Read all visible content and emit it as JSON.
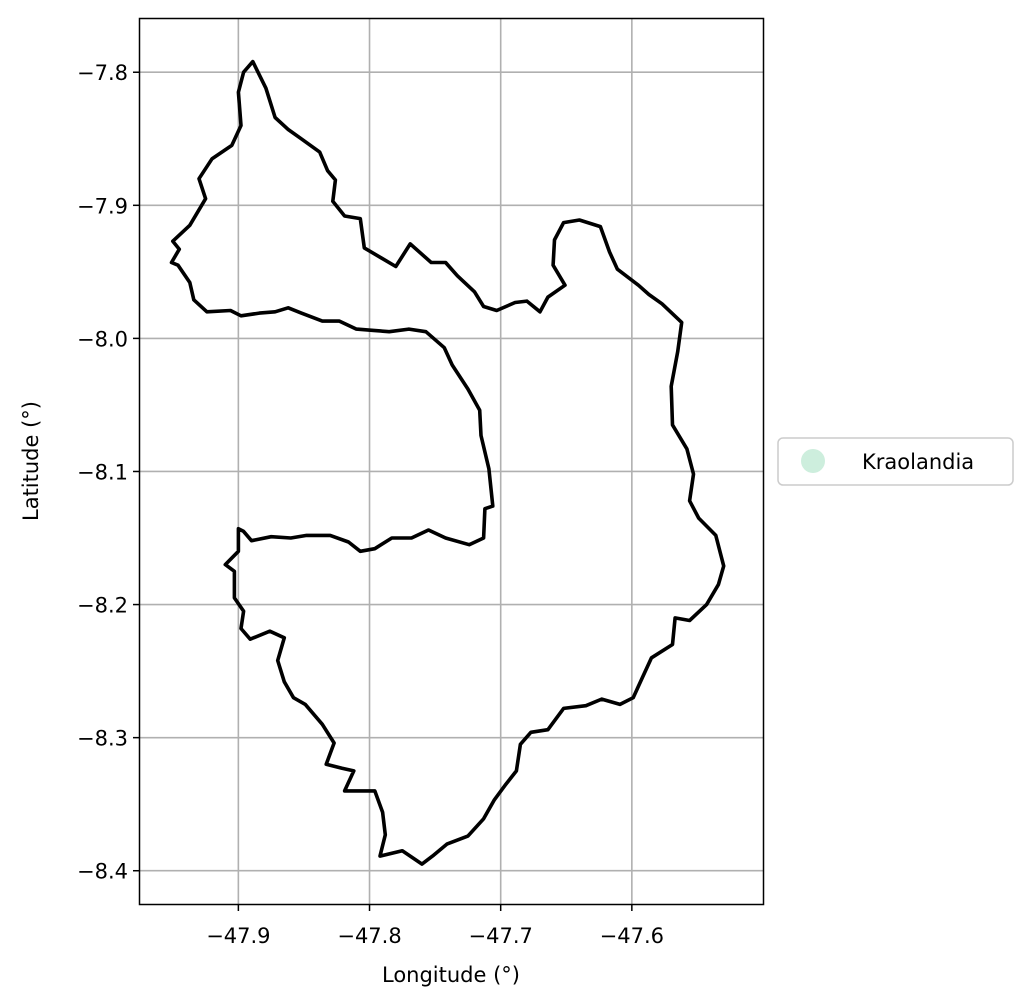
{
  "chart_data": {
    "type": "map",
    "xlabel": "Longitude (°)",
    "ylabel": "Latitude (°)",
    "xlim": [
      -47.975,
      -47.5
    ],
    "ylim": [
      -8.425,
      -7.76
    ],
    "x_ticks": [
      -47.9,
      -47.8,
      -47.7,
      -47.6
    ],
    "x_tick_labels": [
      "−47.9",
      "−47.8",
      "−47.7",
      "−47.6"
    ],
    "y_ticks": [
      -7.8,
      -7.9,
      -8.0,
      -8.1,
      -8.2,
      -8.3,
      -8.4
    ],
    "y_tick_labels": [
      "−7.8",
      "−7.9",
      "−8.0",
      "−8.1",
      "−8.2",
      "−8.3",
      "−8.4"
    ],
    "grid": true,
    "legend": {
      "placement": "right-outside",
      "entries": [
        {
          "label": "Kraolandia",
          "color": "#cdeedd",
          "marker": "circle"
        }
      ]
    },
    "boundary_color": "#000000",
    "boundary": [
      [
        -47.889,
        -7.792
      ],
      [
        -47.885,
        -7.8
      ],
      [
        -47.879,
        -7.812
      ],
      [
        -47.872,
        -7.834
      ],
      [
        -47.862,
        -7.843
      ],
      [
        -47.852,
        -7.85
      ],
      [
        -47.838,
        -7.86
      ],
      [
        -47.832,
        -7.874
      ],
      [
        -47.826,
        -7.881
      ],
      [
        -47.828,
        -7.897
      ],
      [
        -47.819,
        -7.908
      ],
      [
        -47.807,
        -7.91
      ],
      [
        -47.804,
        -7.932
      ],
      [
        -47.78,
        -7.946
      ],
      [
        -47.769,
        -7.929
      ],
      [
        -47.753,
        -7.943
      ],
      [
        -47.742,
        -7.943
      ],
      [
        -47.733,
        -7.953
      ],
      [
        -47.72,
        -7.965
      ],
      [
        -47.713,
        -7.976
      ],
      [
        -47.703,
        -7.979
      ],
      [
        -47.689,
        -7.973
      ],
      [
        -47.68,
        -7.972
      ],
      [
        -47.67,
        -7.98
      ],
      [
        -47.664,
        -7.969
      ],
      [
        -47.651,
        -7.96
      ],
      [
        -47.66,
        -7.945
      ],
      [
        -47.659,
        -7.926
      ],
      [
        -47.652,
        -7.913
      ],
      [
        -47.64,
        -7.911
      ],
      [
        -47.624,
        -7.916
      ],
      [
        -47.617,
        -7.935
      ],
      [
        -47.611,
        -7.948
      ],
      [
        -47.595,
        -7.96
      ],
      [
        -47.587,
        -7.967
      ],
      [
        -47.577,
        -7.974
      ],
      [
        -47.562,
        -7.988
      ],
      [
        -47.565,
        -8.01
      ],
      [
        -47.57,
        -8.036
      ],
      [
        -47.569,
        -8.065
      ],
      [
        -47.558,
        -8.083
      ],
      [
        -47.553,
        -8.102
      ],
      [
        -47.556,
        -8.122
      ],
      [
        -47.549,
        -8.135
      ],
      [
        -47.536,
        -8.148
      ],
      [
        -47.53,
        -8.171
      ],
      [
        -47.534,
        -8.185
      ],
      [
        -47.543,
        -8.2
      ],
      [
        -47.556,
        -8.212
      ],
      [
        -47.567,
        -8.21
      ],
      [
        -47.569,
        -8.23
      ],
      [
        -47.585,
        -8.24
      ],
      [
        -47.592,
        -8.255
      ],
      [
        -47.599,
        -8.27
      ],
      [
        -47.609,
        -8.275
      ],
      [
        -47.623,
        -8.271
      ],
      [
        -47.635,
        -8.276
      ],
      [
        -47.652,
        -8.278
      ],
      [
        -47.664,
        -8.294
      ],
      [
        -47.677,
        -8.296
      ],
      [
        -47.685,
        -8.305
      ],
      [
        -47.688,
        -8.325
      ],
      [
        -47.696,
        -8.335
      ],
      [
        -47.705,
        -8.347
      ],
      [
        -47.713,
        -8.361
      ],
      [
        -47.725,
        -8.374
      ],
      [
        -47.741,
        -8.38
      ],
      [
        -47.752,
        -8.389
      ],
      [
        -47.76,
        -8.395
      ],
      [
        -47.775,
        -8.385
      ],
      [
        -47.792,
        -8.389
      ],
      [
        -47.788,
        -8.373
      ],
      [
        -47.79,
        -8.356
      ],
      [
        -47.796,
        -8.34
      ],
      [
        -47.808,
        -8.34
      ],
      [
        -47.819,
        -8.34
      ],
      [
        -47.812,
        -8.325
      ],
      [
        -47.821,
        -8.323
      ],
      [
        -47.833,
        -8.32
      ],
      [
        -47.827,
        -8.304
      ],
      [
        -47.836,
        -8.29
      ],
      [
        -47.849,
        -8.275
      ],
      [
        -47.858,
        -8.27
      ],
      [
        -47.865,
        -8.258
      ],
      [
        -47.87,
        -8.242
      ],
      [
        -47.865,
        -8.225
      ],
      [
        -47.876,
        -8.22
      ],
      [
        -47.891,
        -8.226
      ],
      [
        -47.898,
        -8.218
      ],
      [
        -47.896,
        -8.205
      ],
      [
        -47.903,
        -8.195
      ],
      [
        -47.903,
        -8.175
      ],
      [
        -47.91,
        -8.17
      ],
      [
        -47.9,
        -8.16
      ],
      [
        -47.9,
        -8.143
      ],
      [
        -47.896,
        -8.145
      ],
      [
        -47.89,
        -8.152
      ],
      [
        -47.875,
        -8.149
      ],
      [
        -47.86,
        -8.15
      ],
      [
        -47.848,
        -8.148
      ],
      [
        -47.83,
        -8.148
      ],
      [
        -47.816,
        -8.153
      ],
      [
        -47.807,
        -8.16
      ],
      [
        -47.796,
        -8.158
      ],
      [
        -47.783,
        -8.15
      ],
      [
        -47.768,
        -8.15
      ],
      [
        -47.755,
        -8.144
      ],
      [
        -47.742,
        -8.15
      ],
      [
        -47.724,
        -8.155
      ],
      [
        -47.713,
        -8.15
      ],
      [
        -47.712,
        -8.128
      ],
      [
        -47.706,
        -8.126
      ],
      [
        -47.709,
        -8.098
      ],
      [
        -47.715,
        -8.073
      ],
      [
        -47.716,
        -8.054
      ],
      [
        -47.725,
        -8.038
      ],
      [
        -47.737,
        -8.02
      ],
      [
        -47.743,
        -8.007
      ],
      [
        -47.757,
        -7.995
      ],
      [
        -47.77,
        -7.993
      ],
      [
        -47.785,
        -7.995
      ],
      [
        -47.797,
        -7.994
      ],
      [
        -47.81,
        -7.993
      ],
      [
        -47.823,
        -7.987
      ],
      [
        -47.836,
        -7.987
      ],
      [
        -47.852,
        -7.981
      ],
      [
        -47.862,
        -7.977
      ],
      [
        -47.872,
        -7.98
      ],
      [
        -47.884,
        -7.981
      ],
      [
        -47.898,
        -7.983
      ],
      [
        -47.906,
        -7.979
      ],
      [
        -47.924,
        -7.98
      ],
      [
        -47.934,
        -7.971
      ],
      [
        -47.937,
        -7.958
      ],
      [
        -47.946,
        -7.945
      ],
      [
        -47.951,
        -7.943
      ],
      [
        -47.945,
        -7.933
      ],
      [
        -47.95,
        -7.927
      ],
      [
        -47.937,
        -7.915
      ],
      [
        -47.925,
        -7.895
      ],
      [
        -47.93,
        -7.88
      ],
      [
        -47.92,
        -7.865
      ],
      [
        -47.905,
        -7.855
      ],
      [
        -47.898,
        -7.84
      ],
      [
        -47.9,
        -7.815
      ],
      [
        -47.896,
        -7.8
      ],
      [
        -47.889,
        -7.792
      ]
    ]
  }
}
